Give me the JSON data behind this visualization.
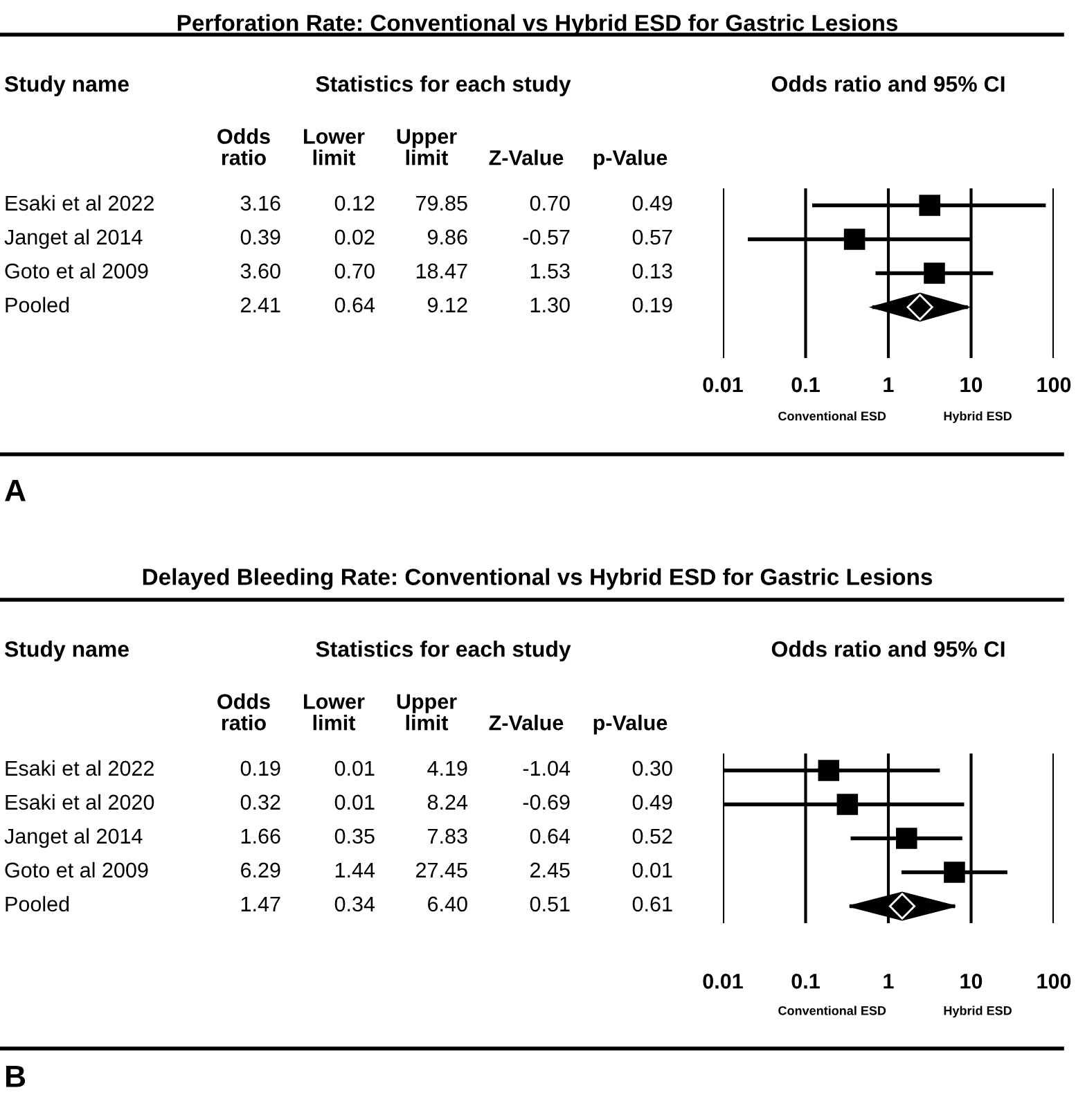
{
  "chart_data": [
    {
      "type": "other",
      "title": "Perforation Rate: Conventional vs Hybrid ESD for Gastric Lesions",
      "categories": [
        "Esaki et al 2022",
        "Janget al 2014",
        "Goto et al 2009",
        "Pooled"
      ],
      "annotations": [
        "Study name",
        "Statistics for each study",
        "A"
      ],
      "series": [
        {
          "name": "Odds\nratio",
          "values": [
            3.16,
            0.39,
            3.6,
            2.41
          ],
          "value_labels": [
            "3.16",
            "0.39",
            "3.60",
            "2.41"
          ]
        },
        {
          "name": "Lower\nlimit",
          "values": [
            0.12,
            0.02,
            0.7,
            0.64
          ],
          "value_labels": [
            "0.12",
            "0.02",
            "0.70",
            "0.64"
          ]
        },
        {
          "name": "Upper\nlimit",
          "values": [
            79.85,
            9.86,
            18.47,
            9.12
          ],
          "value_labels": [
            "79.85",
            "9.86",
            "18.47",
            "9.12"
          ]
        },
        {
          "name": "Z-Value",
          "values": [
            0.7,
            -0.57,
            1.53,
            1.3
          ],
          "value_labels": [
            "0.70",
            "-0.57",
            "1.53",
            "1.30"
          ]
        },
        {
          "name": "p-Value",
          "values": [
            0.49,
            0.57,
            0.13,
            0.19
          ],
          "value_labels": [
            "0.49",
            "0.57",
            "0.13",
            "0.19"
          ]
        }
      ]
    },
    {
      "type": "scatter",
      "title": "Odds ratio and 95% CI",
      "orientation": "horizontal",
      "log": "x",
      "xlim": [
        0.01,
        100
      ],
      "xticks": [
        0.01,
        0.1,
        1,
        10,
        100
      ],
      "grid": "x",
      "tick_labels": "x",
      "categories": [
        null,
        null,
        null,
        null,
        null
      ],
      "annotations": [
        "Conventional ESD",
        "Hybrid ESD"
      ],
      "series": [
        {
          "color": "#000000",
          "marker": "square",
          "values": [
            3.16,
            0.39,
            3.6,
            null,
            null
          ],
          "errors": [
            [
              0.12,
              79.85
            ],
            [
              0.02,
              9.86
            ],
            [
              0.7,
              18.47
            ],
            null,
            null
          ]
        },
        {
          "color": "#000000",
          "marker": "diamond",
          "values": [
            null,
            null,
            null,
            2.41,
            null
          ],
          "errors": [
            null,
            null,
            null,
            [
              0.64,
              9.12
            ],
            null
          ]
        }
      ]
    },
    {
      "type": "other",
      "title": "Delayed Bleeding Rate: Conventional vs Hybrid ESD for Gastric Lesions",
      "categories": [
        "Esaki et al 2022",
        "Esaki et al 2020",
        "Janget al 2014",
        "Goto et al 2009",
        "Pooled"
      ],
      "annotations": [
        "Study name",
        "Statistics for each study",
        "B"
      ],
      "series": [
        {
          "name": "Odds\nratio",
          "values": [
            0.19,
            0.32,
            1.66,
            6.29,
            1.47
          ],
          "value_labels": [
            "0.19",
            "0.32",
            "1.66",
            "6.29",
            "1.47"
          ]
        },
        {
          "name": "Lower\nlimit",
          "values": [
            0.01,
            0.01,
            0.35,
            1.44,
            0.34
          ],
          "value_labels": [
            "0.01",
            "0.01",
            "0.35",
            "1.44",
            "0.34"
          ]
        },
        {
          "name": "Upper\nlimit",
          "values": [
            4.19,
            8.24,
            7.83,
            27.45,
            6.4
          ],
          "value_labels": [
            "4.19",
            "8.24",
            "7.83",
            "27.45",
            "6.40"
          ]
        },
        {
          "name": "Z-Value",
          "values": [
            -1.04,
            -0.69,
            0.64,
            2.45,
            0.51
          ],
          "value_labels": [
            "-1.04",
            "-0.69",
            "0.64",
            "2.45",
            "0.51"
          ]
        },
        {
          "name": "p-Value",
          "values": [
            0.3,
            0.49,
            0.52,
            0.01,
            0.61
          ],
          "value_labels": [
            "0.30",
            "0.49",
            "0.52",
            "0.01",
            "0.61"
          ]
        }
      ]
    },
    {
      "type": "scatter",
      "title": "Odds ratio and 95% CI",
      "orientation": "horizontal",
      "log": "x",
      "xlim": [
        0.01,
        100
      ],
      "xticks": [
        0.01,
        0.1,
        1,
        10,
        100
      ],
      "grid": "x",
      "tick_labels": "x",
      "categories": [
        null,
        null,
        null,
        null,
        null
      ],
      "annotations": [
        "Conventional ESD",
        "Hybrid ESD"
      ],
      "series": [
        {
          "color": "#000000",
          "marker": "square",
          "values": [
            0.19,
            0.32,
            1.66,
            6.29,
            null
          ],
          "errors": [
            [
              0.01,
              4.19
            ],
            [
              0.01,
              8.24
            ],
            [
              0.35,
              7.83
            ],
            [
              1.44,
              27.45
            ],
            null
          ]
        },
        {
          "color": "#000000",
          "marker": "diamond",
          "values": [
            null,
            null,
            null,
            null,
            1.47
          ],
          "errors": [
            null,
            null,
            null,
            null,
            [
              0.34,
              6.4
            ]
          ]
        }
      ]
    }
  ]
}
